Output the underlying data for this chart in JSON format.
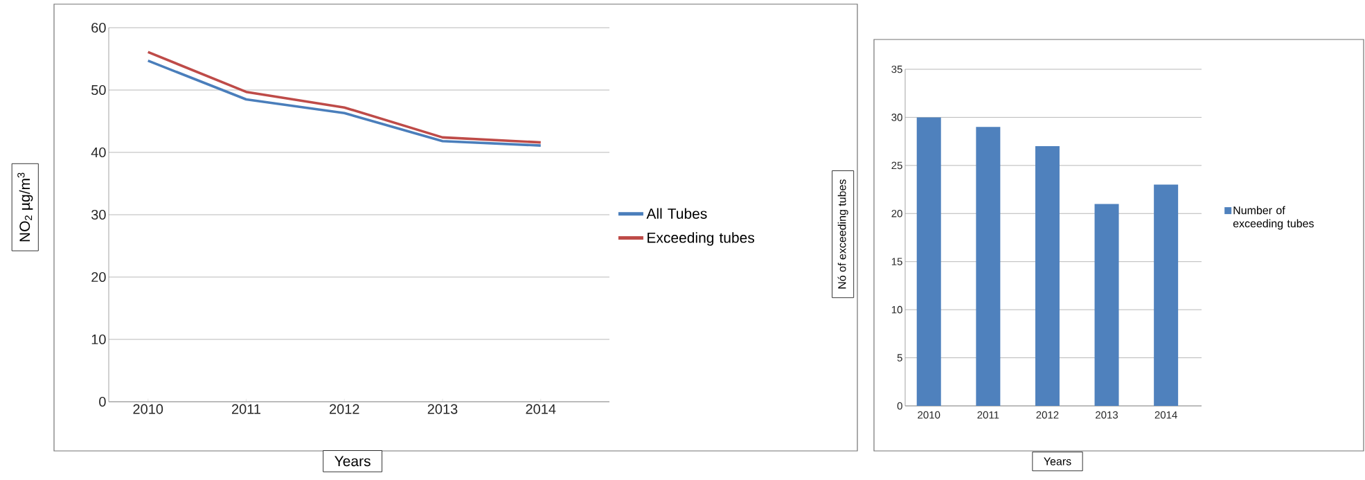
{
  "chart_data": [
    {
      "type": "line",
      "categories": [
        "2010",
        "2011",
        "2012",
        "2013",
        "2014"
      ],
      "xlabel": "Years",
      "ylabel": "NO$_{2}$ µg/m$^{3}$",
      "series": [
        {
          "name": "All Tubes",
          "color": "#4a7ebb",
          "values": [
            54.7,
            48.5,
            46.3,
            41.8,
            41.1
          ]
        },
        {
          "name": "Exceeding tubes",
          "color": "#be4b48",
          "values": [
            56.1,
            49.7,
            47.2,
            42.4,
            41.6
          ]
        }
      ],
      "ylim": [
        0,
        60
      ],
      "yticks": [
        0,
        10,
        20,
        30,
        40,
        50,
        60
      ],
      "grid": "y",
      "legend": "right",
      "marker": "none",
      "line_style": "solid"
    },
    {
      "type": "bar",
      "categories": [
        "2010",
        "2011",
        "2012",
        "2013",
        "2014"
      ],
      "xlabel": "Years",
      "ylabel": "Nó of exceeding tubes",
      "series": [
        {
          "name": "Number of exceeding tubes",
          "color": "#4f81bd",
          "values": [
            30,
            29,
            27,
            21,
            23
          ]
        }
      ],
      "ylim": [
        0,
        35
      ],
      "yticks": [
        0,
        5,
        10,
        15,
        20,
        25,
        30,
        35
      ],
      "grid": "y",
      "legend": "right"
    }
  ]
}
